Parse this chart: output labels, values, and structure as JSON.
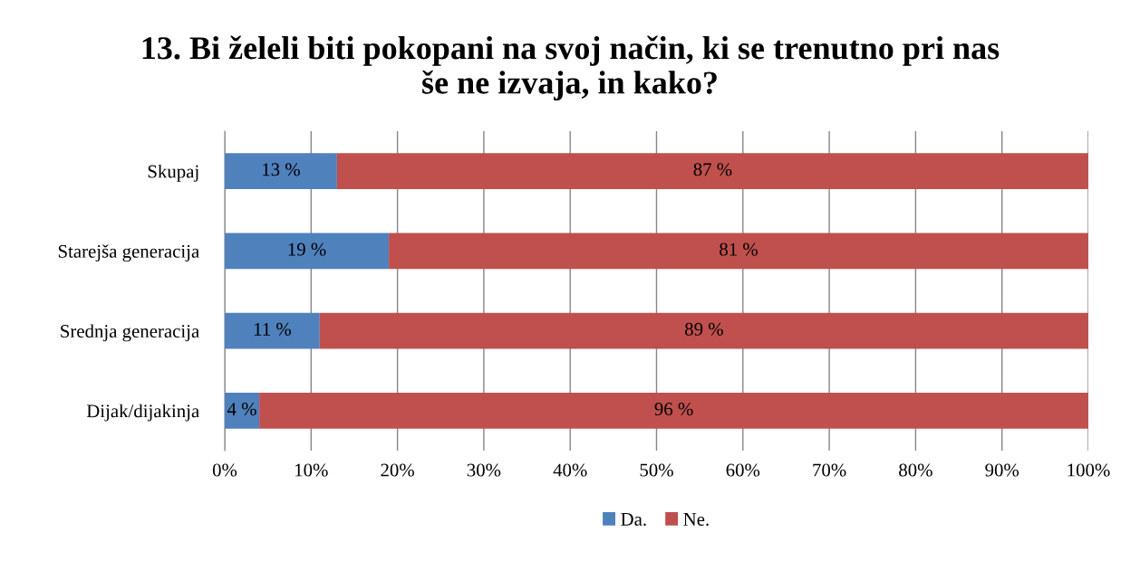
{
  "chart_data": {
    "type": "bar",
    "orientation": "horizontal",
    "stacked": true,
    "title": "13. Bi želeli biti pokopani na svoj način, ki se trenutno pri nas\nše ne izvaja, in kako?",
    "categories": [
      "Skupaj",
      "Starejša generacija",
      "Srednja generacija",
      "Dijak/dijakinja"
    ],
    "series": [
      {
        "name": "Da.",
        "color": "#4f81bd",
        "values": [
          13,
          19,
          11,
          4
        ],
        "value_labels": [
          "13 %",
          "19 %",
          "11 %",
          "4 %"
        ]
      },
      {
        "name": "Ne.",
        "color": "#c0504d",
        "values": [
          87,
          81,
          89,
          96
        ],
        "value_labels": [
          "87 %",
          "81 %",
          "89 %",
          "96 %"
        ]
      }
    ],
    "xlim": [
      0,
      100
    ],
    "xticks": [
      {
        "value": 0,
        "label": "0%"
      },
      {
        "value": 10,
        "label": "10%"
      },
      {
        "value": 20,
        "label": "20%"
      },
      {
        "value": 30,
        "label": "30%"
      },
      {
        "value": 40,
        "label": "40%"
      },
      {
        "value": 50,
        "label": "50%"
      },
      {
        "value": 60,
        "label": "60%"
      },
      {
        "value": 70,
        "label": "70%"
      },
      {
        "value": 80,
        "label": "80%"
      },
      {
        "value": 90,
        "label": "90%"
      },
      {
        "value": 100,
        "label": "100%"
      }
    ],
    "grid": "x",
    "legend": "bottom"
  }
}
